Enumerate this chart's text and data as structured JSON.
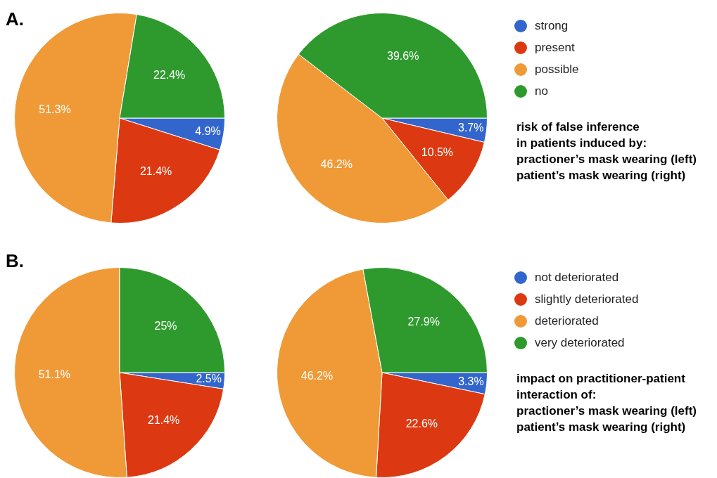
{
  "chart_data": [
    {
      "type": "pie",
      "title": "A.",
      "categories": [
        "strong",
        "present",
        "possible",
        "no"
      ],
      "colors": [
        "#3366cc",
        "#dc3912",
        "#f09a37",
        "#2e9a2e"
      ],
      "legend": "right",
      "series": [
        {
          "values": [
            4.9,
            21.4,
            51.3,
            22.4
          ],
          "value_labels": [
            "4.9%",
            "21.4%",
            "51.3%",
            "22.4%"
          ]
        },
        {
          "values": [
            3.7,
            10.5,
            46.2,
            39.6
          ],
          "value_labels": [
            "3.7%",
            "10.5%",
            "46.2%",
            "39.6%"
          ]
        }
      ],
      "annotations": [
        "risk of false inference",
        "in patients induced by:",
        "practioner’s mask wearing (left)",
        "patient’s mask wearing (right)"
      ]
    },
    {
      "type": "pie",
      "title": "B.",
      "categories": [
        "not deteriorated",
        "slightly deteriorated",
        "deteriorated",
        "very deteriorated"
      ],
      "colors": [
        "#3366cc",
        "#dc3912",
        "#f09a37",
        "#2e9a2e"
      ],
      "legend": "right",
      "series": [
        {
          "values": [
            2.5,
            21.4,
            51.1,
            25
          ],
          "value_labels": [
            "2.5%",
            "21.4%",
            "51.1%",
            "25%"
          ]
        },
        {
          "values": [
            3.3,
            22.6,
            46.2,
            27.9
          ],
          "value_labels": [
            "3.3%",
            "22.6%",
            "46.2%",
            "27.9%"
          ]
        }
      ],
      "annotations": [
        "impact on practitioner-patient",
        "interaction of:",
        "practioner’s mask wearing (left)",
        "patient’s mask wearing (right)"
      ]
    }
  ]
}
